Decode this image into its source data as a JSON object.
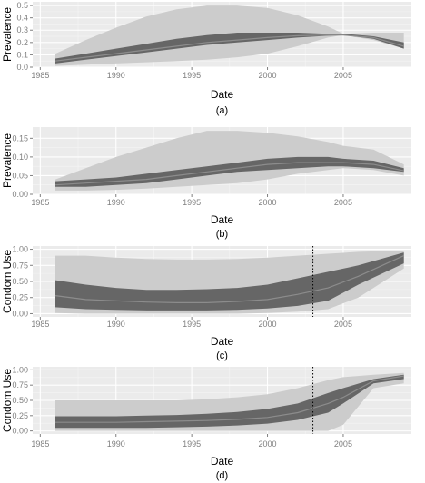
{
  "colors": {
    "panel_bg": "#ebebeb",
    "grid_major": "#ffffff",
    "grid_minor": "#f5f5f5",
    "outer_band": "#cccccc",
    "inner_band": "#666666",
    "median_line": "#8c8c8c",
    "tick_text": "#7f7f7f"
  },
  "chart_data": [
    {
      "type": "area",
      "caption": "(a)",
      "xlabel": "Date",
      "ylabel": "Prevalence",
      "xlim": [
        1984.5,
        2009.5
      ],
      "ylim": [
        0,
        0.53
      ],
      "xticks": [
        1985,
        1990,
        1995,
        2000,
        2005
      ],
      "yticks": [
        0,
        0.1,
        0.2,
        0.3,
        0.4,
        0.5
      ],
      "ytick_labels": [
        "0.0",
        "0.1",
        "0.2",
        "0.3",
        "0.4",
        "0.5"
      ],
      "x": [
        1986,
        1988,
        1990,
        1992,
        1994,
        1996,
        1998,
        2000,
        2002,
        2004,
        2005,
        2007,
        2009
      ],
      "outer_lower": [
        0.01,
        0.02,
        0.03,
        0.04,
        0.05,
        0.06,
        0.08,
        0.11,
        0.17,
        0.24,
        0.26,
        0.22,
        0.15
      ],
      "outer_upper": [
        0.11,
        0.22,
        0.32,
        0.41,
        0.47,
        0.5,
        0.5,
        0.48,
        0.42,
        0.33,
        0.27,
        0.28,
        0.28
      ],
      "inner_lower": [
        0.03,
        0.06,
        0.09,
        0.12,
        0.15,
        0.18,
        0.2,
        0.22,
        0.24,
        0.255,
        0.26,
        0.23,
        0.15
      ],
      "inner_upper": [
        0.07,
        0.11,
        0.15,
        0.19,
        0.23,
        0.26,
        0.28,
        0.28,
        0.28,
        0.27,
        0.27,
        0.25,
        0.2
      ],
      "median": [
        0.05,
        0.08,
        0.11,
        0.14,
        0.17,
        0.2,
        0.22,
        0.24,
        0.255,
        0.26,
        0.26,
        0.24,
        0.17
      ]
    },
    {
      "type": "area",
      "caption": "(b)",
      "xlabel": "Date",
      "ylabel": "Prevalence",
      "xlim": [
        1984.5,
        2009.5
      ],
      "ylim": [
        0,
        0.18
      ],
      "xticks": [
        1985,
        1990,
        1995,
        2000,
        2005
      ],
      "yticks": [
        0,
        0.05,
        0.1,
        0.15
      ],
      "ytick_labels": [
        "0.00",
        "0.05",
        "0.10",
        "0.15"
      ],
      "x": [
        1986,
        1988,
        1990,
        1992,
        1994,
        1996,
        1998,
        2000,
        2002,
        2004,
        2005,
        2007,
        2009
      ],
      "outer_lower": [
        0.01,
        0.01,
        0.012,
        0.015,
        0.02,
        0.025,
        0.03,
        0.04,
        0.055,
        0.065,
        0.07,
        0.065,
        0.05
      ],
      "outer_upper": [
        0.04,
        0.07,
        0.1,
        0.125,
        0.15,
        0.17,
        0.17,
        0.165,
        0.155,
        0.14,
        0.13,
        0.12,
        0.08
      ],
      "inner_lower": [
        0.02,
        0.02,
        0.025,
        0.03,
        0.04,
        0.05,
        0.06,
        0.065,
        0.07,
        0.075,
        0.075,
        0.07,
        0.06
      ],
      "inner_upper": [
        0.035,
        0.04,
        0.045,
        0.055,
        0.065,
        0.075,
        0.085,
        0.095,
        0.1,
        0.1,
        0.095,
        0.09,
        0.07
      ],
      "median": [
        0.025,
        0.03,
        0.035,
        0.04,
        0.05,
        0.06,
        0.07,
        0.08,
        0.085,
        0.085,
        0.085,
        0.08,
        0.063
      ]
    },
    {
      "type": "area",
      "caption": "(c)",
      "xlabel": "Date",
      "ylabel": "Condom Use",
      "xlim": [
        1984.5,
        2009.5
      ],
      "ylim": [
        -0.05,
        1.05
      ],
      "xticks": [
        1985,
        1990,
        1995,
        2000,
        2005
      ],
      "yticks": [
        0,
        0.25,
        0.5,
        0.75,
        1
      ],
      "ytick_labels": [
        "0.00",
        "0.25",
        "0.50",
        "0.75",
        "1.00"
      ],
      "vline": 2003,
      "x": [
        1986,
        1988,
        1990,
        1992,
        1994,
        1996,
        1998,
        2000,
        2002,
        2004,
        2006,
        2009
      ],
      "outer_lower": [
        0.01,
        0.0,
        0.0,
        0.0,
        0.0,
        0.0,
        0.0,
        0.01,
        0.03,
        0.07,
        0.25,
        0.7
      ],
      "outer_upper": [
        0.9,
        0.9,
        0.87,
        0.85,
        0.84,
        0.84,
        0.85,
        0.87,
        0.9,
        0.93,
        0.96,
        0.98
      ],
      "inner_lower": [
        0.1,
        0.07,
        0.06,
        0.05,
        0.05,
        0.05,
        0.06,
        0.08,
        0.12,
        0.2,
        0.45,
        0.78
      ],
      "inner_upper": [
        0.52,
        0.45,
        0.4,
        0.37,
        0.37,
        0.38,
        0.4,
        0.45,
        0.55,
        0.65,
        0.75,
        0.95
      ],
      "median": [
        0.28,
        0.22,
        0.2,
        0.18,
        0.17,
        0.17,
        0.19,
        0.22,
        0.3,
        0.4,
        0.58,
        0.9
      ]
    },
    {
      "type": "area",
      "caption": "(d)",
      "xlabel": "Date",
      "ylabel": "Condom Use",
      "xlim": [
        1984.5,
        2009.5
      ],
      "ylim": [
        -0.05,
        1.05
      ],
      "xticks": [
        1985,
        1990,
        1995,
        2000,
        2005
      ],
      "yticks": [
        0,
        0.25,
        0.5,
        0.75,
        1
      ],
      "ytick_labels": [
        "0.00",
        "0.25",
        "0.50",
        "0.75",
        "1.00"
      ],
      "vline": 2003,
      "x": [
        1986,
        1988,
        1990,
        1992,
        1994,
        1996,
        1998,
        2000,
        2002,
        2004,
        2005,
        2007,
        2009
      ],
      "outer_lower": [
        0.0,
        0.0,
        0.0,
        0.0,
        0.0,
        0.0,
        0.0,
        0.0,
        0.0,
        0.0,
        0.1,
        0.7,
        0.78
      ],
      "outer_upper": [
        0.5,
        0.5,
        0.5,
        0.5,
        0.5,
        0.52,
        0.55,
        0.6,
        0.7,
        0.83,
        0.88,
        0.92,
        0.95
      ],
      "inner_lower": [
        0.05,
        0.05,
        0.05,
        0.05,
        0.06,
        0.07,
        0.09,
        0.12,
        0.18,
        0.3,
        0.45,
        0.78,
        0.85
      ],
      "inner_upper": [
        0.24,
        0.24,
        0.24,
        0.25,
        0.26,
        0.28,
        0.31,
        0.36,
        0.45,
        0.62,
        0.7,
        0.85,
        0.92
      ],
      "median": [
        0.14,
        0.14,
        0.14,
        0.15,
        0.16,
        0.17,
        0.19,
        0.22,
        0.3,
        0.45,
        0.55,
        0.82,
        0.9
      ]
    }
  ]
}
